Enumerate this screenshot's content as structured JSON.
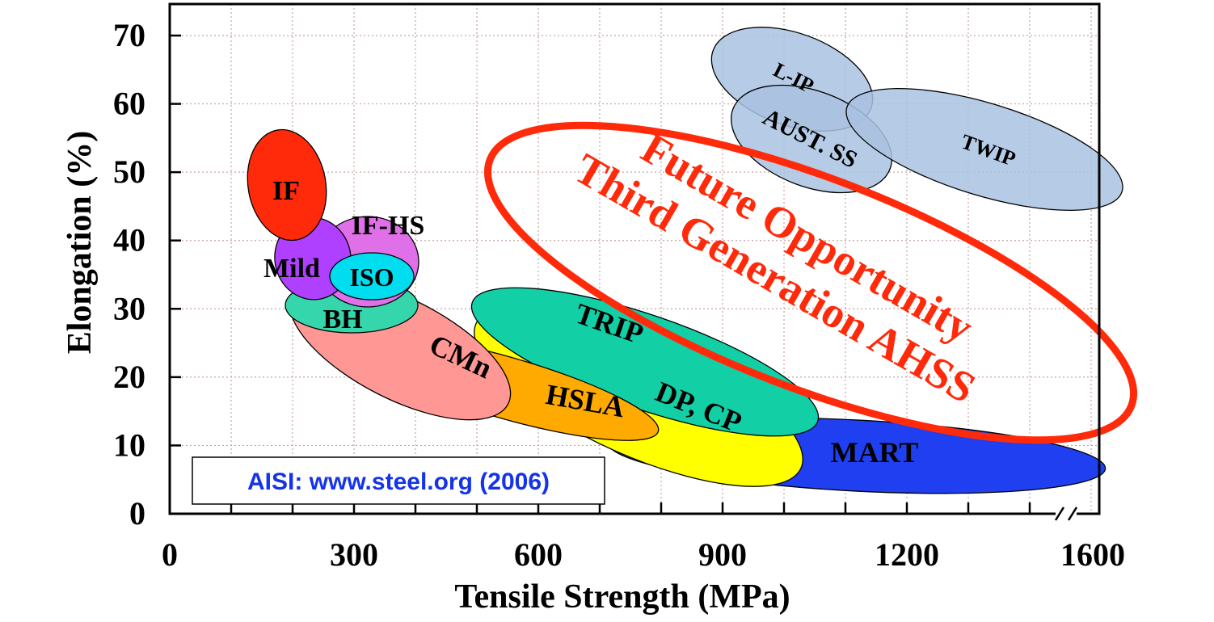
{
  "chart_data": {
    "type": "scatter",
    "xlabel": "Tensile Strength (MPa)",
    "ylabel": "Elongation (%)",
    "xlim": [
      0,
      1600
    ],
    "ylim": [
      0,
      75
    ],
    "x_ticks": [
      "0",
      "300",
      "600",
      "900",
      "1200",
      "1600"
    ],
    "y_ticks": [
      "0",
      "10",
      "20",
      "30",
      "40",
      "50",
      "60",
      "70"
    ],
    "grid": true,
    "source_note": "AISI:  www.steel.org (2006)",
    "future_region": {
      "line1": "Future Opportunity",
      "line2": "Third Generation AHSS",
      "color": "#ff2a0a"
    },
    "regions": [
      {
        "name": "MART",
        "x_range": [
          710,
          1600
        ],
        "y_range": [
          3,
          15
        ],
        "color": "#1f3ff0"
      },
      {
        "name": "DP, CP",
        "x_range": [
          450,
          1030
        ],
        "y_range": [
          6,
          30
        ],
        "color": "#ffff00"
      },
      {
        "name": "TRIP",
        "x_range": [
          490,
          1050
        ],
        "y_range": [
          12,
          33
        ],
        "color": "#12cfa6"
      },
      {
        "name": "HSLA",
        "x_range": [
          290,
          790
        ],
        "y_range": [
          10,
          26
        ],
        "color": "#ffaa00"
      },
      {
        "name": "CMn",
        "x_range": [
          290,
          620
        ],
        "y_range": [
          15,
          32
        ],
        "color": "#ff9795"
      },
      {
        "name": "BH",
        "x_range": [
          190,
          410
        ],
        "y_range": [
          26,
          37
        ],
        "color": "#35d6ac"
      },
      {
        "name": "IF-HS",
        "x_range": [
          250,
          400
        ],
        "y_range": [
          30,
          44
        ],
        "color": "#e070e8"
      },
      {
        "name": "Mild",
        "x_range": [
          175,
          300
        ],
        "y_range": [
          30,
          43
        ],
        "color": "#b040ff"
      },
      {
        "name": "ISO",
        "x_range": [
          255,
          400
        ],
        "y_range": [
          32,
          38
        ],
        "color": "#00ddee"
      },
      {
        "name": "IF",
        "x_range": [
          130,
          260
        ],
        "y_range": [
          40,
          56
        ],
        "color": "#ff2a0a"
      },
      {
        "name": "L-IP",
        "x_range": [
          880,
          1140
        ],
        "y_range": [
          55,
          72
        ],
        "color": "#a9c2e0"
      },
      {
        "name": "AUST. SS",
        "x_range": [
          900,
          1160
        ],
        "y_range": [
          47,
          62
        ],
        "color": "#a9c2e0"
      },
      {
        "name": "TWIP",
        "x_range": [
          1030,
          1510
        ],
        "y_range": [
          44,
          62
        ],
        "color": "#a9c2e0"
      }
    ]
  }
}
